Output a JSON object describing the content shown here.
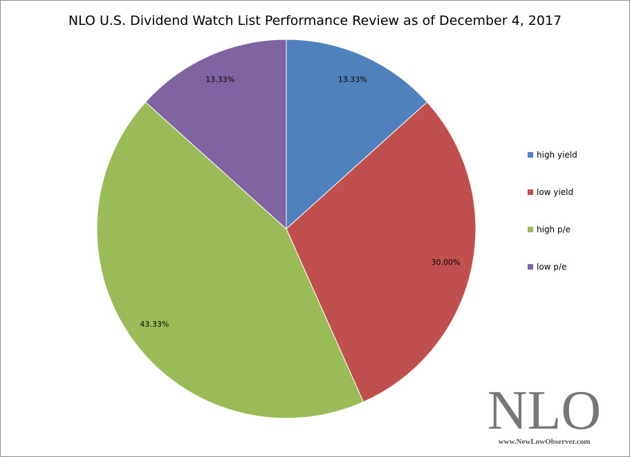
{
  "chart_data": {
    "type": "pie",
    "title": "NLO U.S. Dividend Watch List Performance Review as of December 4, 2017",
    "slices": [
      {
        "name": "high yield",
        "value": 13.33,
        "label": "13.33%",
        "color": "#4f81bd"
      },
      {
        "name": "low yield",
        "value": 30.0,
        "label": "30.00%",
        "color": "#c0504d"
      },
      {
        "name": "high p/e",
        "value": 43.33,
        "label": "43.33%",
        "color": "#9bbb59"
      },
      {
        "name": "low p/e",
        "value": 13.33,
        "label": "13.33%",
        "color": "#8064a2"
      }
    ],
    "start_angle": "12 o'clock",
    "direction": "clockwise",
    "legend_position": "right"
  },
  "watermark": {
    "main": "NLO",
    "sub": "www.NewLowObserver.com"
  }
}
